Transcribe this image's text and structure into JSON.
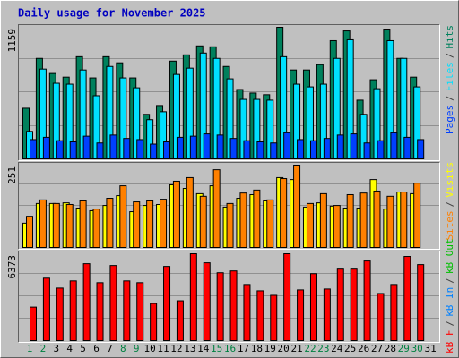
{
  "chart_data": [
    {
      "type": "bar",
      "title": "Daily usage for November 2025",
      "categories": [
        "1",
        "2",
        "3",
        "4",
        "5",
        "6",
        "7",
        "8",
        "9",
        "10",
        "11",
        "12",
        "13",
        "14",
        "15",
        "16",
        "17",
        "18",
        "19",
        "20",
        "21",
        "22",
        "23",
        "24",
        "25",
        "26",
        "27",
        "28",
        "29",
        "30",
        "31"
      ],
      "weekend_color": "#008040",
      "legend_separator": "/",
      "ylim": [
        0,
        1159
      ],
      "yticks": [
        1159
      ],
      "series": [
        {
          "name": "Pages",
          "color": "#0040ff",
          "values": [
            170,
            190,
            160,
            150,
            200,
            140,
            210,
            180,
            170,
            130,
            150,
            190,
            200,
            220,
            210,
            180,
            160,
            150,
            140,
            230,
            170,
            160,
            180,
            210,
            220,
            140,
            160,
            230,
            190,
            170,
            null
          ]
        },
        {
          "name": "Files",
          "color": "#00e0ff",
          "values": [
            242,
            791,
            666,
            658,
            783,
            556,
            814,
            713,
            626,
            345,
            415,
            744,
            799,
            932,
            885,
            705,
            524,
            524,
            517,
            900,
            658,
            634,
            658,
            885,
            1049,
            392,
            618,
            1041,
            885,
            634,
            null
          ]
        },
        {
          "name": "Hits",
          "color": "#00805c",
          "values": [
            446,
            885,
            752,
            720,
            900,
            713,
            900,
            846,
            713,
            392,
            470,
            861,
            916,
            995,
            987,
            814,
            611,
            580,
            565,
            1159,
            783,
            783,
            830,
            1041,
            1127,
            517,
            697,
            1143,
            885,
            720,
            null
          ]
        }
      ]
    },
    {
      "type": "bar",
      "legend_separator": "/",
      "ylim": [
        0,
        251
      ],
      "yticks": [
        251
      ],
      "series": [
        {
          "name": "Sites",
          "color": "#ff8000",
          "values": [
            95,
            145,
            134,
            131,
            142,
            117,
            150,
            188,
            139,
            142,
            147,
            202,
            213,
            156,
            237,
            134,
            166,
            175,
            145,
            210,
            251,
            134,
            164,
            128,
            161,
            166,
            172,
            156,
            169,
            196,
            null
          ]
        },
        {
          "name": "Visits",
          "color": "#ffff00",
          "values": [
            74,
            134,
            134,
            136,
            120,
            112,
            128,
            158,
            109,
            128,
            131,
            191,
            180,
            164,
            188,
            123,
            150,
            161,
            142,
            213,
            207,
            123,
            136,
            126,
            120,
            120,
            207,
            117,
            169,
            164,
            null
          ]
        }
      ]
    },
    {
      "type": "bar",
      "legend_separator": "/",
      "ylim": [
        0,
        6373
      ],
      "yticks": [
        6373
      ],
      "series": [
        {
          "name": "kB F",
          "color": "#ff0000",
          "values": [
            2456,
            4581,
            3850,
            4381,
            5643,
            4249,
            5510,
            4381,
            4249,
            2722,
            5444,
            2921,
            6373,
            5709,
            4979,
            5112,
            4116,
            3651,
            3319,
            6373,
            3718,
            4913,
            3784,
            5245,
            5245,
            5842,
            3452,
            4116,
            6174,
            5577,
            null
          ]
        },
        {
          "name": "kB In",
          "color": "#0080ff",
          "values": [
            0,
            0,
            0,
            0,
            0,
            0,
            0,
            0,
            0,
            0,
            0,
            0,
            0,
            0,
            0,
            0,
            0,
            0,
            0,
            0,
            0,
            0,
            0,
            0,
            0,
            0,
            0,
            0,
            0,
            0,
            null
          ]
        },
        {
          "name": "kB Out",
          "color": "#00c000",
          "values": [
            0,
            0,
            0,
            0,
            0,
            0,
            0,
            0,
            0,
            0,
            0,
            0,
            0,
            0,
            0,
            0,
            0,
            0,
            0,
            0,
            0,
            0,
            0,
            0,
            0,
            0,
            0,
            0,
            0,
            0,
            null
          ]
        }
      ]
    }
  ]
}
